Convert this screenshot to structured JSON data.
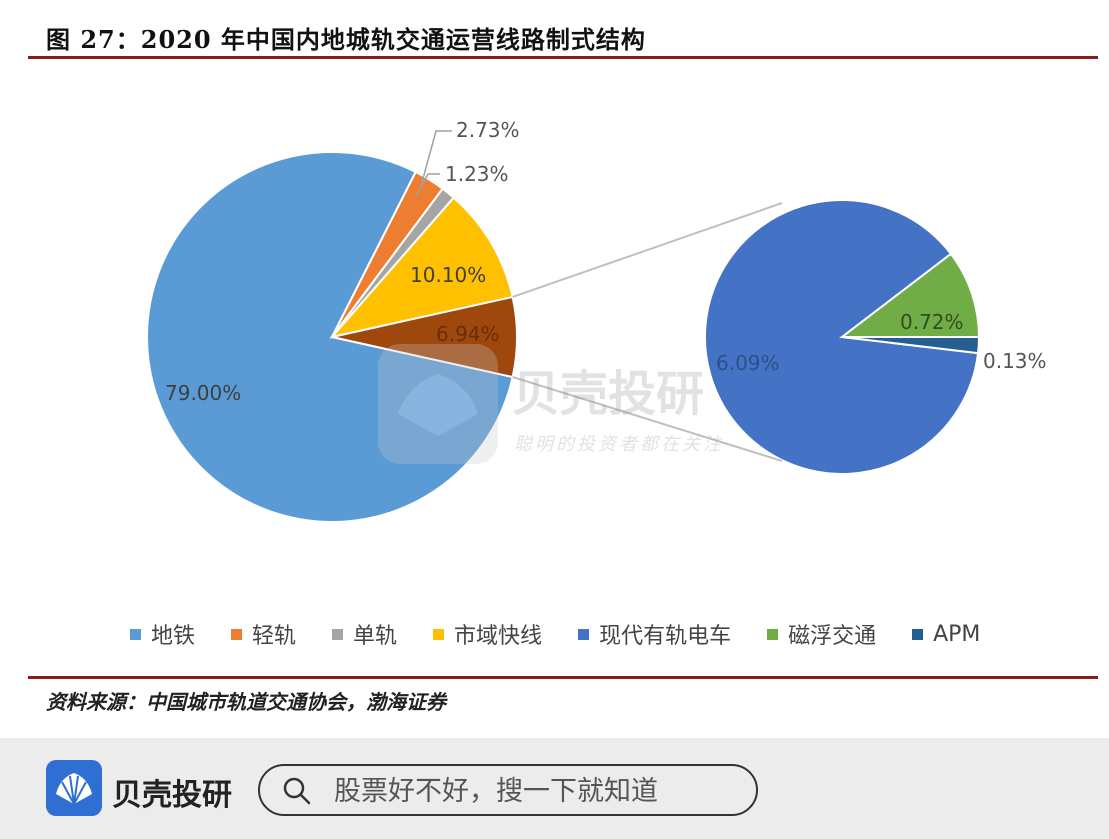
{
  "figure": {
    "title": "图 27：2020 年中国内地城轨交通运营线路制式结构",
    "source": "资料来源：中国城市轨道交通协会，渤海证券"
  },
  "colors": {
    "rule": "#8a1c1c",
    "metro": "#5b9bd5",
    "light_rail": "#ed7d31",
    "monorail": "#a5a5a5",
    "suburban": "#ffc000",
    "other": "#9e480e",
    "tram": "#4472c4",
    "maglev": "#70ad47",
    "apm": "#255e91"
  },
  "chart_data": [
    {
      "type": "pie",
      "title": "",
      "slices": [
        {
          "label": "地铁",
          "value": 79.0,
          "display": "79.00%",
          "color": "#5b9bd5"
        },
        {
          "label": "轻轨",
          "value": 2.73,
          "display": "2.73%",
          "color": "#ed7d31"
        },
        {
          "label": "单轨",
          "value": 1.23,
          "display": "1.23%",
          "color": "#a5a5a5"
        },
        {
          "label": "市域快线",
          "value": 10.1,
          "display": "10.10%",
          "color": "#ffc000"
        },
        {
          "label": "",
          "value": 6.94,
          "display": "6.94%",
          "color": "#9e480e"
        }
      ]
    },
    {
      "type": "pie",
      "title": "",
      "slices": [
        {
          "label": "现代有轨电车",
          "value": 6.09,
          "display": "6.09%",
          "color": "#4472c4"
        },
        {
          "label": "磁浮交通",
          "value": 0.72,
          "display": "0.72%",
          "color": "#70ad47"
        },
        {
          "label": "APM",
          "value": 0.13,
          "display": "0.13%",
          "color": "#255e91"
        }
      ]
    }
  ],
  "legend": [
    {
      "label": "地铁",
      "color": "#5b9bd5"
    },
    {
      "label": "轻轨",
      "color": "#ed7d31"
    },
    {
      "label": "单轨",
      "color": "#a5a5a5"
    },
    {
      "label": "市域快线",
      "color": "#ffc000"
    },
    {
      "label": "现代有轨电车",
      "color": "#4472c4"
    },
    {
      "label": "磁浮交通",
      "color": "#70ad47"
    },
    {
      "label": "APM",
      "color": "#255e91"
    }
  ],
  "watermark": {
    "name": "贝壳投研",
    "slogan": "聪明的投资者都在关注"
  },
  "bottom_bar": {
    "brand": "贝壳投研",
    "search_placeholder": "股票好不好，搜一下就知道"
  }
}
